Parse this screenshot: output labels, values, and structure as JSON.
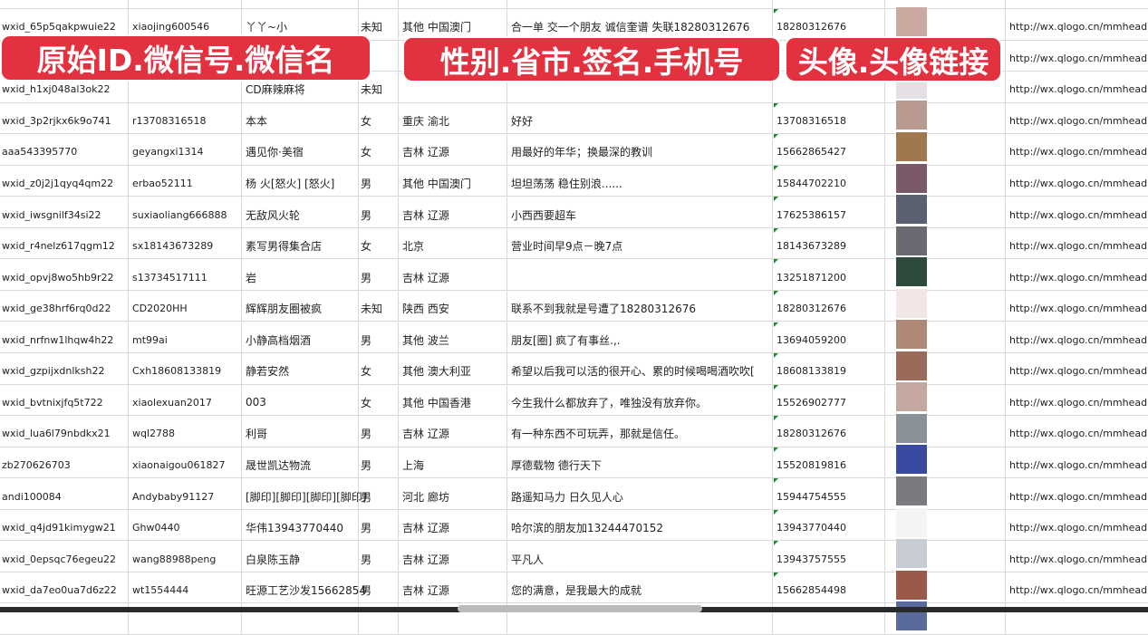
{
  "overlays": {
    "label_left": "原始ID.微信号.微信名",
    "label_middle": "性别.省市.签名.手机号",
    "label_right": "头像.头像链接"
  },
  "colors": {
    "overlay_bg": "#e2323f",
    "grid": "#d9d9d9",
    "comment_marker": "#1a8a3a"
  },
  "rows": [
    {
      "id": "wxid_65p5qakpwuie22",
      "wechat": "xiaojing600546",
      "name": "丫丫~小",
      "gender": "未知",
      "region": "其他 中国澳门",
      "signature": "合一单 交一个朋友 诚信奎谱 失联18280312676",
      "phone": "18280312676",
      "avatar_color": "#c9a9a0",
      "url": "http://wx.qlogo.cn/mmhead"
    },
    {
      "id": "",
      "wechat": "",
      "name": "",
      "gender": "",
      "region": "",
      "signature": "",
      "phone": "",
      "avatar_color": "#8a86b8",
      "url": "http://wx.qlogo.cn/mmhead"
    },
    {
      "id": "wxid_h1xj048al3ok22",
      "wechat": "",
      "name": "CD麻辣麻将",
      "gender": "未知",
      "region": "",
      "signature": "",
      "phone": "",
      "avatar_color": "#e4e0e6",
      "url": "http://wx.qlogo.cn/mmhead"
    },
    {
      "id": "wxid_3p2rjkx6k9o741",
      "wechat": "r13708316518",
      "name": "本本",
      "gender": "女",
      "region": "重庆 渝北",
      "signature": "好好",
      "phone": "13708316518",
      "avatar_color": "#b89a90",
      "url": "http://wx.qlogo.cn/mmhead"
    },
    {
      "id": "aaa543395770",
      "wechat": "geyangxi1314",
      "name": "遇见你·美宿",
      "gender": "女",
      "region": "吉林 辽源",
      "signature": "用最好的年华；换最深的教训",
      "phone": "15662865427",
      "avatar_color": "#a07850",
      "url": "http://wx.qlogo.cn/mmhead"
    },
    {
      "id": "wxid_z0j2j1qyq4qm22",
      "wechat": "erbao52111",
      "name": "杨 火[怒火] [怒火]",
      "gender": "男",
      "region": "其他 中国澳门",
      "signature": "坦坦荡荡 稳住别浪......",
      "phone": "15844702210",
      "avatar_color": "#7a5a6a",
      "url": "http://wx.qlogo.cn/mmhead"
    },
    {
      "id": "wxid_iwsgnilf34si22",
      "wechat": "suxiaoliang666888",
      "name": "无敌风火轮",
      "gender": "男",
      "region": "吉林 辽源",
      "signature": "小西西要超车",
      "phone": "17625386157",
      "avatar_color": "#5a6070",
      "url": "http://wx.qlogo.cn/mmhead"
    },
    {
      "id": "wxid_r4nelz617qgm12",
      "wechat": "sx18143673289",
      "name": "素写男得集合店",
      "gender": "女",
      "region": "北京",
      "signature": "营业时间早9点－晚7点",
      "phone": "18143673289",
      "avatar_color": "#6a6a72",
      "url": "http://wx.qlogo.cn/mmhead"
    },
    {
      "id": "wxid_opvj8wo5hb9r22",
      "wechat": "s13734517111",
      "name": "岩",
      "gender": "男",
      "region": "吉林 辽源",
      "signature": "",
      "phone": "13251871200",
      "avatar_color": "#2e4a3a",
      "url": "http://wx.qlogo.cn/mmhead"
    },
    {
      "id": "wxid_ge38hrf6rq0d22",
      "wechat": "CD2020HH",
      "name": "辉辉朋友圈被疯",
      "gender": "未知",
      "region": "陕西 西安",
      "signature": "联系不到我就是号遭了18280312676",
      "phone": "18280312676",
      "avatar_color": "#f2e6e6",
      "url": "http://wx.qlogo.cn/mmhead"
    },
    {
      "id": "wxid_nrfnw1lhqw4h22",
      "wechat": "mt99ai",
      "name": "小静高档烟酒",
      "gender": "男",
      "region": "其他 波兰",
      "signature": "朋友[圈] 疯了有事丝.,.",
      "phone": "13694059200",
      "avatar_color": "#b08878",
      "url": "http://wx.qlogo.cn/mmhead"
    },
    {
      "id": "wxid_gzpijxdnlksh22",
      "wechat": "Cxh18608133819",
      "name": "静若安然",
      "gender": "女",
      "region": "其他 澳大利亚",
      "signature": "希望以后我可以活的很开心、累的时候喝喝酒吹吹[",
      "phone": "18608133819",
      "avatar_color": "#9a6a5a",
      "url": "http://wx.qlogo.cn/mmhead"
    },
    {
      "id": "wxid_bvtnixjfq5t722",
      "wechat": "xiaolexuan2017",
      "name": "003",
      "gender": "女",
      "region": "其他 中国香港",
      "signature": "今生我什么都放弃了，唯独没有放弃你。",
      "phone": "15526902777",
      "avatar_color": "#c4a8a0",
      "url": "http://wx.qlogo.cn/mmhead"
    },
    {
      "id": "wxid_lua6l79nbdkx21",
      "wechat": "wql2788",
      "name": "利哥",
      "gender": "男",
      "region": "吉林 辽源",
      "signature": "有一种东西不可玩弄，那就是信任。",
      "phone": "18280312676",
      "avatar_color": "#8a9098",
      "url": "http://wx.qlogo.cn/mmhead"
    },
    {
      "id": "zb270626703",
      "wechat": "xiaonaigou061827",
      "name": "晟世凯达物流",
      "gender": "男",
      "region": "上海",
      "signature": "厚德载物 德行天下",
      "phone": "15520819816",
      "avatar_color": "#3a4aa0",
      "url": "http://wx.qlogo.cn/mmhead"
    },
    {
      "id": "andi100084",
      "wechat": "Andybaby91127",
      "name": "[脚印][脚印][脚印][脚印]",
      "gender": "男",
      "region": "河北 廊坊",
      "signature": "路遥知马力 日久见人心",
      "phone": "15944754555",
      "avatar_color": "#7a7a80",
      "url": "http://wx.qlogo.cn/mmhead"
    },
    {
      "id": "wxid_q4jd91kimygw21",
      "wechat": "Ghw0440",
      "name": "华伟13943770440",
      "gender": "男",
      "region": "吉林 辽源",
      "signature": "哈尔滨的朋友加13244470152",
      "phone": "13943770440",
      "avatar_color": "#f4f4f4",
      "url": "http://wx.qlogo.cn/mmhead"
    },
    {
      "id": "wxid_0epsqc76egeu22",
      "wechat": "wang88988peng",
      "name": "白泉陈玉静",
      "gender": "男",
      "region": "吉林 辽源",
      "signature": "平凡人",
      "phone": "13943757555",
      "avatar_color": "#c8ccd4",
      "url": "http://wx.qlogo.cn/mmhead"
    },
    {
      "id": "wxid_da7eo0ua7d6z22",
      "wechat": "wt1554444",
      "name": "旺源工艺沙发15662854",
      "gender": "男",
      "region": "吉林 辽源",
      "signature": "您的满意，是我最大的成就",
      "phone": "15662854498",
      "avatar_color": "#9a5a4a",
      "url": "http://wx.qlogo.cn/mmhead"
    },
    {
      "id": "",
      "wechat": "",
      "name": "",
      "gender": "",
      "region": "",
      "signature": "",
      "phone": "",
      "avatar_color": "#5a6a9a",
      "url": ""
    }
  ]
}
